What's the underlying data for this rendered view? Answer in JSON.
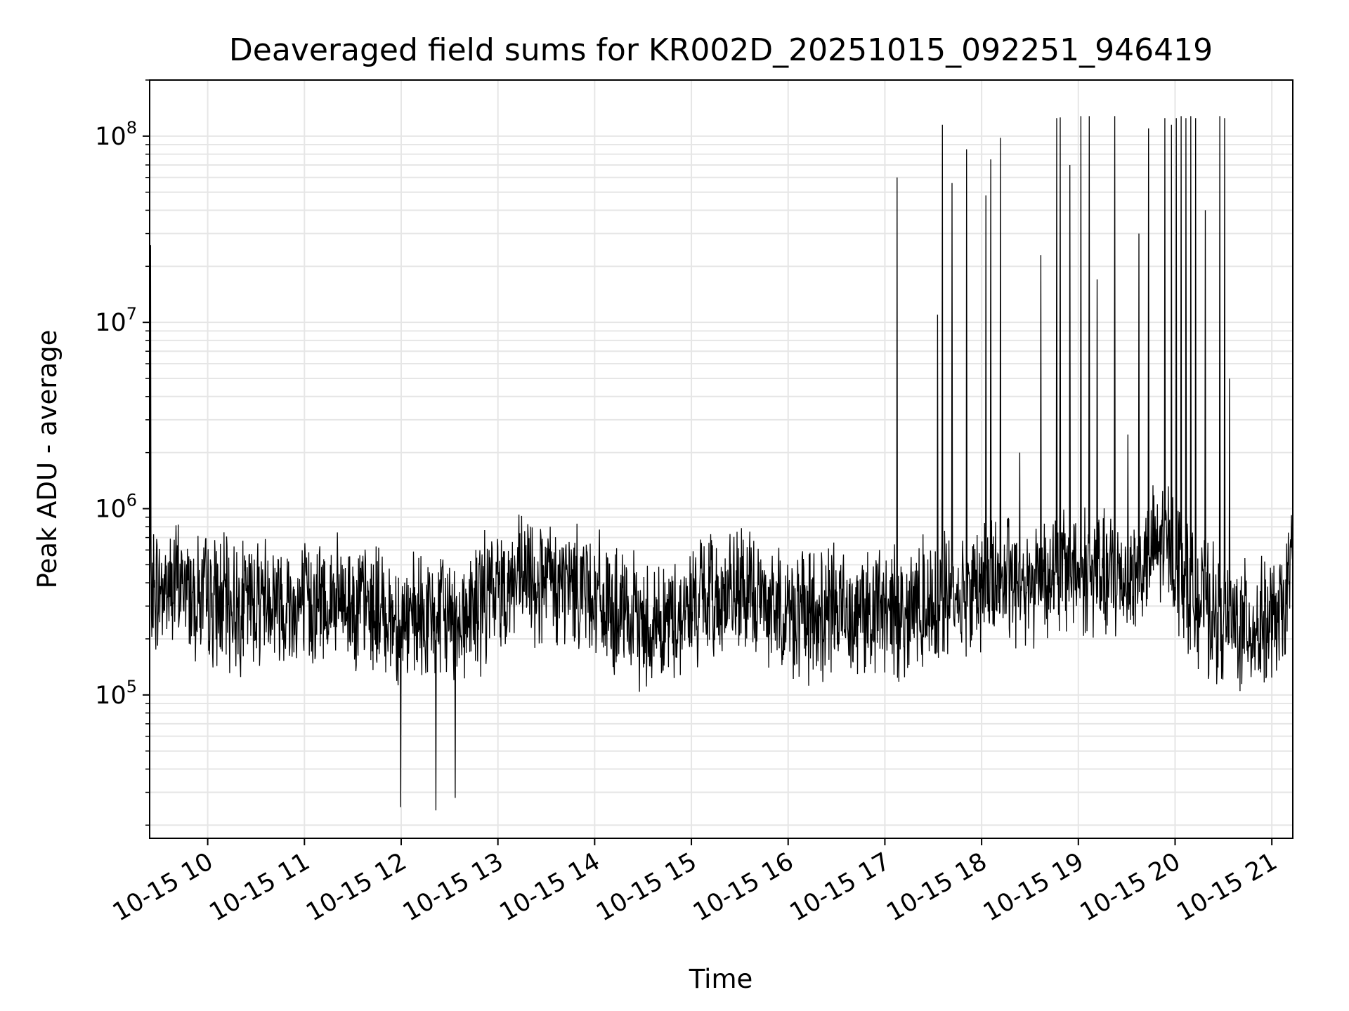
{
  "chart_data": {
    "type": "line",
    "title": "Deaveraged field sums for KR002D_20251015_092251_946419",
    "xlabel": "Time",
    "ylabel": "Peak ADU - average",
    "y_scale": "log",
    "ylim": [
      17000,
      200000000
    ],
    "xlim": [
      "2025-10-15 09:24",
      "2025-10-15 21:13"
    ],
    "grid": true,
    "line_color": "#000000",
    "grid_color": "#e6e6e6",
    "x_ticks": [
      {
        "value": "2025-10-15 10:00",
        "label": "10-15 10"
      },
      {
        "value": "2025-10-15 11:00",
        "label": "10-15 11"
      },
      {
        "value": "2025-10-15 12:00",
        "label": "10-15 12"
      },
      {
        "value": "2025-10-15 13:00",
        "label": "10-15 13"
      },
      {
        "value": "2025-10-15 14:00",
        "label": "10-15 14"
      },
      {
        "value": "2025-10-15 15:00",
        "label": "10-15 15"
      },
      {
        "value": "2025-10-15 16:00",
        "label": "10-15 16"
      },
      {
        "value": "2025-10-15 17:00",
        "label": "10-15 17"
      },
      {
        "value": "2025-10-15 18:00",
        "label": "10-15 18"
      },
      {
        "value": "2025-10-15 19:00",
        "label": "10-15 19"
      },
      {
        "value": "2025-10-15 20:00",
        "label": "10-15 20"
      },
      {
        "value": "2025-10-15 21:00",
        "label": "10-15 21"
      }
    ],
    "y_ticks": [
      {
        "value": 100000,
        "base": "10",
        "exp": "5"
      },
      {
        "value": 1000000,
        "base": "10",
        "exp": "6"
      },
      {
        "value": 10000000,
        "base": "10",
        "exp": "7"
      },
      {
        "value": 100000000,
        "base": "10",
        "exp": "8"
      }
    ],
    "series": [
      {
        "x": [
          "2025-10-15 09:24",
          "2025-10-15 09:42",
          "2025-10-15 10:00",
          "2025-10-15 10:18",
          "2025-10-15 10:36",
          "2025-10-15 10:54",
          "2025-10-15 11:12",
          "2025-10-15 11:30",
          "2025-10-15 11:48",
          "2025-10-15 12:06",
          "2025-10-15 12:24",
          "2025-10-15 12:42",
          "2025-10-15 13:00",
          "2025-10-15 13:18",
          "2025-10-15 13:36",
          "2025-10-15 13:54",
          "2025-10-15 14:12",
          "2025-10-15 14:30",
          "2025-10-15 14:48",
          "2025-10-15 15:06",
          "2025-10-15 15:24",
          "2025-10-15 15:42",
          "2025-10-15 16:00",
          "2025-10-15 16:18",
          "2025-10-15 16:36",
          "2025-10-15 16:54",
          "2025-10-15 17:12",
          "2025-10-15 17:30",
          "2025-10-15 17:48",
          "2025-10-15 18:06",
          "2025-10-15 18:24",
          "2025-10-15 18:42",
          "2025-10-15 19:00",
          "2025-10-15 19:18",
          "2025-10-15 19:36",
          "2025-10-15 19:54",
          "2025-10-15 20:12",
          "2025-10-15 20:30",
          "2025-10-15 20:48",
          "2025-10-15 21:06",
          "2025-10-15 21:13"
        ],
        "y": [
          350000,
          400000,
          320000,
          300000,
          350000,
          300000,
          320000,
          310000,
          280000,
          240000,
          260000,
          270000,
          380000,
          420000,
          380000,
          400000,
          260000,
          240000,
          250000,
          330000,
          350000,
          330000,
          280000,
          260000,
          300000,
          280000,
          280000,
          330000,
          350000,
          420000,
          400000,
          460000,
          480000,
          420000,
          440000,
          700000,
          320000,
          250000,
          230000,
          250000,
          530000
        ]
      }
    ],
    "spikes": [
      {
        "x": "2025-10-15 09:25",
        "y": 26000000
      },
      {
        "x": "2025-10-15 12:00",
        "y": 25000
      },
      {
        "x": "2025-10-15 12:22",
        "y": 24000
      },
      {
        "x": "2025-10-15 12:34",
        "y": 28000
      },
      {
        "x": "2025-10-15 17:08",
        "y": 60000000
      },
      {
        "x": "2025-10-15 17:33",
        "y": 11000000
      },
      {
        "x": "2025-10-15 17:36",
        "y": 115000000
      },
      {
        "x": "2025-10-15 17:42",
        "y": 56000000
      },
      {
        "x": "2025-10-15 17:51",
        "y": 85000000
      },
      {
        "x": "2025-10-15 18:03",
        "y": 48000000
      },
      {
        "x": "2025-10-15 18:06",
        "y": 75000000
      },
      {
        "x": "2025-10-15 18:12",
        "y": 98000000
      },
      {
        "x": "2025-10-15 18:24",
        "y": 2000000
      },
      {
        "x": "2025-10-15 18:37",
        "y": 23000000
      },
      {
        "x": "2025-10-15 18:47",
        "y": 125000000
      },
      {
        "x": "2025-10-15 18:49",
        "y": 126000000
      },
      {
        "x": "2025-10-15 18:55",
        "y": 70000000
      },
      {
        "x": "2025-10-15 19:02",
        "y": 128000000
      },
      {
        "x": "2025-10-15 19:07",
        "y": 128000000
      },
      {
        "x": "2025-10-15 19:12",
        "y": 17000000
      },
      {
        "x": "2025-10-15 19:23",
        "y": 128000000
      },
      {
        "x": "2025-10-15 19:31",
        "y": 2500000
      },
      {
        "x": "2025-10-15 19:38",
        "y": 30000000
      },
      {
        "x": "2025-10-15 19:44",
        "y": 110000000
      },
      {
        "x": "2025-10-15 19:54",
        "y": 125000000
      },
      {
        "x": "2025-10-15 19:58",
        "y": 115000000
      },
      {
        "x": "2025-10-15 20:01",
        "y": 125000000
      },
      {
        "x": "2025-10-15 20:04",
        "y": 128000000
      },
      {
        "x": "2025-10-15 20:07",
        "y": 125000000
      },
      {
        "x": "2025-10-15 20:10",
        "y": 128000000
      },
      {
        "x": "2025-10-15 20:13",
        "y": 125000000
      },
      {
        "x": "2025-10-15 20:19",
        "y": 40000000
      },
      {
        "x": "2025-10-15 20:28",
        "y": 128000000
      },
      {
        "x": "2025-10-15 20:31",
        "y": 125000000
      },
      {
        "x": "2025-10-15 20:34",
        "y": 5000000
      }
    ]
  }
}
